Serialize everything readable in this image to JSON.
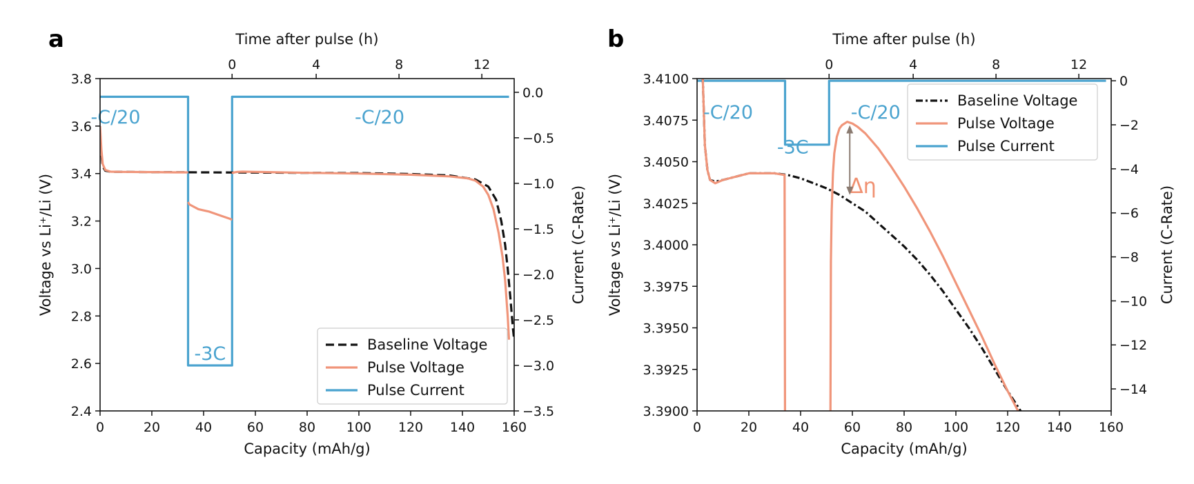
{
  "colors": {
    "baseline": "#111111",
    "pulse_voltage": "#f0957a",
    "pulse_current": "#4aa3cf",
    "annotation_arrow": "#8a7a70"
  },
  "chart_data": [
    {
      "panel": "a",
      "type": "line",
      "xlabel": "Capacity (mAh/g)",
      "ylabel": "Voltage vs Li⁺/Li (V)",
      "y2label": "Current (C-Rate)",
      "top_xlabel": "Time after pulse (h)",
      "xlim": [
        0,
        160
      ],
      "ylim": [
        2.4,
        3.8
      ],
      "y2lim": [
        -3.5,
        0.15
      ],
      "x_ticks": [
        "0",
        "20",
        "40",
        "60",
        "80",
        "100",
        "120",
        "140",
        "160"
      ],
      "y_ticks": [
        "2.4",
        "2.6",
        "2.8",
        "3.0",
        "3.2",
        "3.4",
        "3.6",
        "3.8"
      ],
      "y2_ticks": [
        "−3.5",
        "−3.0",
        "−2.5",
        "−2.0",
        "−1.5",
        "−1.0",
        "−0.5",
        "0.0"
      ],
      "top_ticks": [
        "0",
        "4",
        "8",
        "12"
      ],
      "top_tick_capacity": [
        51,
        83.5,
        115.5,
        147.5
      ],
      "grid": false,
      "legend_position": "lower-right",
      "series": [
        {
          "name": "Baseline Voltage",
          "style": "dashed",
          "axis": "left",
          "x": [
            0,
            0.5,
            1,
            2,
            4,
            8,
            20,
            40,
            60,
            80,
            100,
            120,
            135,
            145,
            150,
            153,
            155,
            156.5,
            157.5,
            158.5,
            159.5,
            160
          ],
          "y": [
            3.58,
            3.48,
            3.43,
            3.412,
            3.408,
            3.407,
            3.406,
            3.405,
            3.404,
            3.403,
            3.402,
            3.398,
            3.392,
            3.375,
            3.345,
            3.29,
            3.2,
            3.1,
            3.0,
            2.88,
            2.75,
            2.7
          ]
        },
        {
          "name": "Pulse Voltage",
          "style": "solid",
          "axis": "left",
          "segments": [
            {
              "x": [
                0,
                0.5,
                1,
                2,
                4,
                8,
                20,
                30,
                34
              ],
              "y": [
                3.6,
                3.5,
                3.44,
                3.415,
                3.408,
                3.407,
                3.406,
                3.405,
                3.405
              ]
            },
            {
              "x": [
                34,
                34.5,
                38,
                42,
                46,
                50,
                51
              ],
              "y": [
                3.28,
                3.27,
                3.25,
                3.24,
                3.225,
                3.21,
                3.205
              ]
            },
            {
              "x": [
                51,
                51.5,
                53,
                55,
                60,
                80,
                100,
                120,
                135,
                142,
                145,
                148,
                150,
                152,
                154,
                155.5,
                156.5,
                157.5,
                158
              ],
              "y": [
                3.4,
                3.404,
                3.407,
                3.408,
                3.407,
                3.403,
                3.4,
                3.395,
                3.388,
                3.38,
                3.37,
                3.345,
                3.31,
                3.25,
                3.15,
                3.05,
                2.95,
                2.8,
                2.7
              ]
            }
          ]
        },
        {
          "name": "Pulse Current",
          "style": "solid",
          "axis": "right",
          "x": [
            0,
            34,
            34,
            51,
            51,
            158
          ],
          "y": [
            -0.05,
            -0.05,
            -3.0,
            -3.0,
            -0.05,
            -0.05
          ]
        }
      ],
      "annotations": [
        {
          "text": "-C/20",
          "x": 6,
          "y2": -0.25
        },
        {
          "text": "-3C",
          "x": 42.5,
          "y2": -2.85
        },
        {
          "text": "-C/20",
          "x": 108,
          "y2": -0.25
        }
      ]
    },
    {
      "panel": "b",
      "type": "line",
      "xlabel": "Capacity (mAh/g)",
      "ylabel": "Voltage vs Li⁺/Li (V)",
      "y2label": "Current (C-Rate)",
      "top_xlabel": "Time after pulse (h)",
      "xlim": [
        0,
        160
      ],
      "ylim": [
        3.39,
        3.41
      ],
      "y2lim": [
        -15,
        0.1
      ],
      "x_ticks": [
        "0",
        "20",
        "40",
        "60",
        "80",
        "100",
        "120",
        "140",
        "160"
      ],
      "y_ticks": [
        "3.3900",
        "3.3925",
        "3.3950",
        "3.3975",
        "3.4000",
        "3.4025",
        "3.4050",
        "3.4075",
        "3.4100"
      ],
      "y2_ticks": [
        "−14",
        "−12",
        "−10",
        "−8",
        "−6",
        "−4",
        "−2",
        "0"
      ],
      "top_ticks": [
        "0",
        "4",
        "8",
        "12"
      ],
      "top_tick_capacity": [
        51,
        83.5,
        115.5,
        147.5
      ],
      "grid": false,
      "legend_position": "upper-right",
      "series": [
        {
          "name": "Baseline Voltage",
          "style": "dashed",
          "axis": "left",
          "x": [
            2,
            3,
            4,
            5,
            7,
            10,
            15,
            20,
            25,
            30,
            35,
            40,
            45,
            50,
            55,
            60,
            65,
            70,
            75,
            80,
            85,
            90,
            95,
            100,
            105,
            110,
            115,
            120,
            125,
            130
          ],
          "y": [
            3.411,
            3.406,
            3.4045,
            3.4039,
            3.4038,
            3.4039,
            3.4041,
            3.4043,
            3.4043,
            3.4043,
            3.4042,
            3.404,
            3.4037,
            3.4034,
            3.403,
            3.4025,
            3.402,
            3.4013,
            3.4006,
            3.3999,
            3.3991,
            3.3982,
            3.3972,
            3.3961,
            3.395,
            3.3938,
            3.3925,
            3.3912,
            3.39,
            3.3887
          ]
        },
        {
          "name": "Pulse Voltage",
          "style": "solid",
          "axis": "left",
          "segments": [
            {
              "x": [
                2,
                2.5,
                3,
                4,
                5,
                7,
                10,
                15,
                20,
                25,
                30,
                33.8,
                34
              ],
              "y": [
                3.411,
                3.4085,
                3.406,
                3.4045,
                3.4039,
                3.4037,
                3.4039,
                3.4041,
                3.4043,
                3.4043,
                3.4043,
                3.4042,
                3.388
              ]
            },
            {
              "x": [
                51.5,
                51.7,
                52,
                52.5,
                53,
                54,
                55,
                56,
                58,
                60,
                62,
                65,
                70,
                75,
                80,
                85,
                90,
                95,
                100,
                105,
                110,
                115,
                120,
                125,
                128
              ],
              "y": [
                3.388,
                3.399,
                3.402,
                3.4043,
                3.4055,
                3.4065,
                3.407,
                3.4072,
                3.4074,
                3.4073,
                3.4071,
                3.4067,
                3.4058,
                3.4047,
                3.4035,
                3.4022,
                3.4008,
                3.3993,
                3.3977,
                3.3961,
                3.3945,
                3.3928,
                3.3912,
                3.3897,
                3.3888
              ]
            }
          ]
        },
        {
          "name": "Pulse Current",
          "style": "solid",
          "axis": "right",
          "x": [
            0,
            34,
            34,
            51,
            51,
            158
          ],
          "y": [
            0,
            0,
            -2.9,
            -2.9,
            0,
            0
          ]
        }
      ],
      "annotations": [
        {
          "text": "-C/20",
          "x": 12,
          "y": 3.4081
        },
        {
          "text": "-3C",
          "x": 37,
          "y": 3.406
        },
        {
          "text": "-C/20",
          "x": 69,
          "y": 3.4081
        },
        {
          "text": "Δη",
          "x": 64,
          "y": 3.4036,
          "color": "orange"
        }
      ],
      "delta_eta_arrow": {
        "x": 59,
        "y_from": 3.403,
        "y_to": 3.4072
      }
    }
  ],
  "panels": {
    "a": {
      "label": "a"
    },
    "b": {
      "label": "b"
    }
  }
}
